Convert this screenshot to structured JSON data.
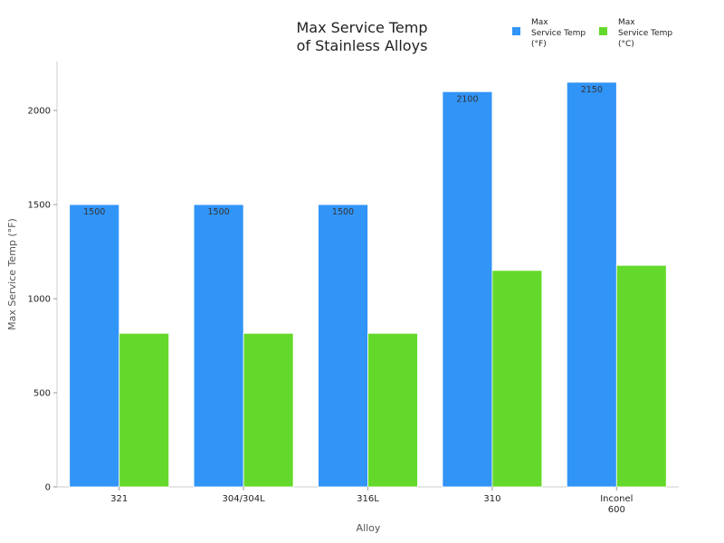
{
  "chart_data": {
    "type": "bar",
    "title_lines": [
      "Max Service Temp",
      "of Stainless Alloys"
    ],
    "xlabel": "Alloy",
    "ylabel": "Max Service Temp (°F)",
    "categories": [
      [
        "321"
      ],
      [
        "304/304L"
      ],
      [
        "316L"
      ],
      [
        "310"
      ],
      [
        "Inconel",
        "600"
      ]
    ],
    "series": [
      {
        "name_lines": [
          "Max",
          "Service Temp",
          "(°F)"
        ],
        "color": "#3194f7",
        "values": [
          1500,
          1500,
          1500,
          2100,
          2150
        ],
        "labels": [
          "1500",
          "1500",
          "1500",
          "2100",
          "2150"
        ]
      },
      {
        "name_lines": [
          "Max",
          "Service Temp",
          "(°C)"
        ],
        "color": "#65d92b",
        "values": [
          816,
          816,
          816,
          1150,
          1177
        ],
        "labels": []
      }
    ],
    "ylim": [
      0,
      2260
    ],
    "yticks": [
      0,
      500,
      1000,
      1500,
      2000
    ],
    "grid": false,
    "legend_position": "top-right"
  }
}
